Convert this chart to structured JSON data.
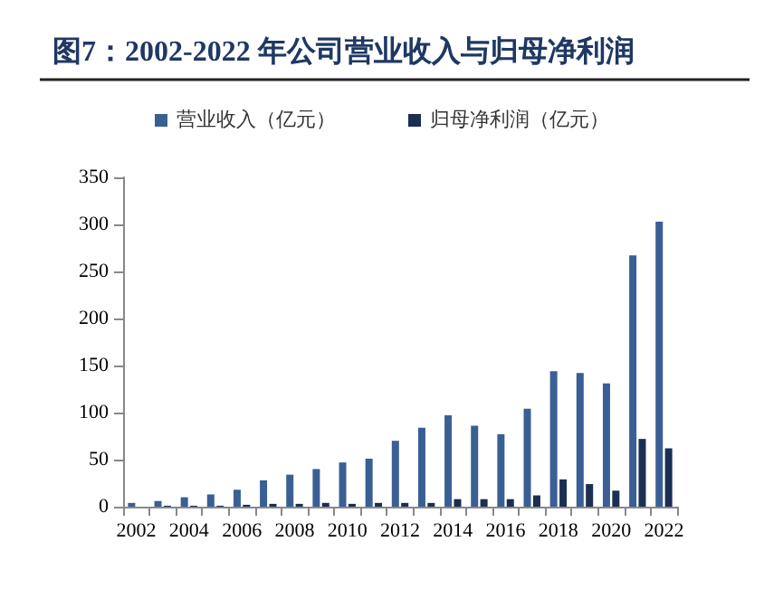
{
  "chart_data": {
    "type": "bar",
    "title": "图7：2002-2022 年公司营业收入与归母净利润",
    "categories": [
      "2002",
      null,
      "2004",
      null,
      "2006",
      null,
      "2008",
      null,
      "2010",
      null,
      "2012",
      null,
      "2014",
      null,
      "2016",
      null,
      "2018",
      null,
      "2020",
      null,
      "2022"
    ],
    "series": [
      {
        "name": "营业收入（亿元）",
        "color": "#3a5f94",
        "values": [
          4,
          6,
          10,
          13,
          18,
          28,
          34,
          40,
          47,
          51,
          70,
          84,
          97,
          86,
          77,
          104,
          144,
          142,
          131,
          267,
          303
        ]
      },
      {
        "name": "归母净利润（亿元）",
        "color": "#1a2f52",
        "values": [
          null,
          1,
          1,
          1,
          2,
          3,
          3,
          4,
          3,
          4,
          4,
          4,
          8,
          8,
          8,
          12,
          29,
          24,
          17,
          72,
          62
        ]
      }
    ],
    "ylim": [
      0,
      350
    ],
    "yticks": [
      0,
      50,
      100,
      150,
      200,
      250,
      300,
      350
    ],
    "grid": false,
    "legend": "top"
  }
}
